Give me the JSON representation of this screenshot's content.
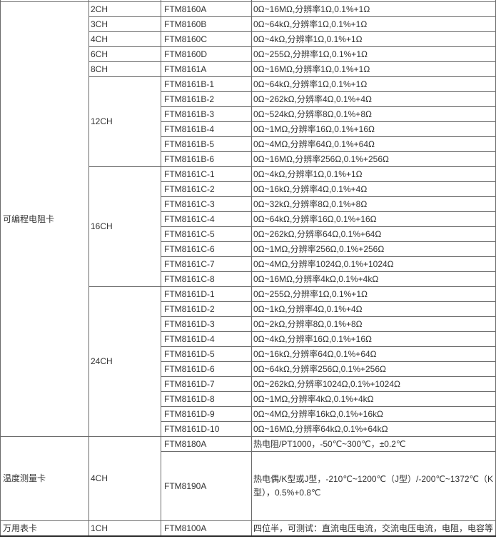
{
  "colors": {
    "border": "#6b6b6b",
    "text": "#333333",
    "background": "#ffffff",
    "outer_bottom_border": "#2e2e2e"
  },
  "table": {
    "sections": [
      {
        "category": "可编程电阻卡",
        "groups": [
          {
            "channel": "2CH",
            "rows": [
              {
                "model": "FTM8160A",
                "spec": "0Ω~16MΩ,分辨率1Ω,0.1%+1Ω"
              }
            ]
          },
          {
            "channel": "3CH",
            "rows": [
              {
                "model": "FTM8160B",
                "spec": "0Ω~64kΩ,分辨率1Ω,0.1%+1Ω"
              }
            ]
          },
          {
            "channel": "4CH",
            "rows": [
              {
                "model": "FTM8160C",
                "spec": "0Ω~4kΩ,分辨率1Ω,0.1%+1Ω"
              }
            ]
          },
          {
            "channel": "6CH",
            "rows": [
              {
                "model": "FTM8160D",
                "spec": "0Ω~255Ω,分辨率1Ω,0.1%+1Ω"
              }
            ]
          },
          {
            "channel": "8CH",
            "rows": [
              {
                "model": "FTM8161A",
                "spec": "0Ω~16MΩ,分辨率1Ω,0.1%+1Ω"
              }
            ]
          },
          {
            "channel": "12CH",
            "rows": [
              {
                "model": "FTM8161B-1",
                "spec": "0Ω~64kΩ,分辨率1Ω,0.1%+1Ω"
              },
              {
                "model": "FTM8161B-2",
                "spec": "0Ω~262kΩ,分辨率4Ω,0.1%+4Ω"
              },
              {
                "model": "FTM8161B-3",
                "spec": "0Ω~524kΩ,分辨率8Ω,0.1%+8Ω"
              },
              {
                "model": "FTM8161B-4",
                "spec": "0Ω~1MΩ,分辨率16Ω,0.1%+16Ω"
              },
              {
                "model": "FTM8161B-5",
                "spec": "0Ω~4MΩ,分辨率64Ω,0.1%+64Ω"
              },
              {
                "model": "FTM8161B-6",
                "spec": "0Ω~16MΩ,分辨率256Ω,0.1%+256Ω"
              }
            ]
          },
          {
            "channel": "16CH",
            "rows": [
              {
                "model": "FTM8161C-1",
                "spec": "0Ω~4kΩ,分辨率1Ω,0.1%+1Ω"
              },
              {
                "model": "FTM8161C-2",
                "spec": "0Ω~16kΩ,分辨率4Ω,0.1%+4Ω"
              },
              {
                "model": "FTM8161C-3",
                "spec": "0Ω~32kΩ,分辨率8Ω,0.1%+8Ω"
              },
              {
                "model": "FTM8161C-4",
                "spec": "0Ω~64kΩ,分辨率16Ω,0.1%+16Ω"
              },
              {
                "model": "FTM8161C-5",
                "spec": "0Ω~262kΩ,分辨率64Ω,0.1%+64Ω"
              },
              {
                "model": "FTM8161C-6",
                "spec": "0Ω~1MΩ,分辨率256Ω,0.1%+256Ω"
              },
              {
                "model": "FTM8161C-7",
                "spec": "0Ω~4MΩ,分辨率1024Ω,0.1%+1024Ω"
              },
              {
                "model": "FTM8161C-8",
                "spec": "0Ω~16MΩ,分辨率4kΩ,0.1%+4kΩ"
              }
            ]
          },
          {
            "channel": "24CH",
            "rows": [
              {
                "model": "FTM8161D-1",
                "spec": "0Ω~255Ω,分辨率1Ω,0.1%+1Ω"
              },
              {
                "model": "FTM8161D-2",
                "spec": "0Ω~1kΩ,分辨率4Ω,0.1%+4Ω"
              },
              {
                "model": "FTM8161D-3",
                "spec": "0Ω~2kΩ,分辨率8Ω,0.1%+8Ω"
              },
              {
                "model": "FTM8161D-4",
                "spec": "0Ω~4kΩ,分辨率16Ω,0.1%+16Ω"
              },
              {
                "model": "FTM8161D-5",
                "spec": "0Ω~16kΩ,分辨率64Ω,0.1%+64Ω"
              },
              {
                "model": "FTM8161D-6",
                "spec": "0Ω~64kΩ,分辨率256Ω,0.1%+256Ω"
              },
              {
                "model": "FTM8161D-7",
                "spec": "0Ω~262kΩ,分辨率1024Ω,0.1%+1024Ω"
              },
              {
                "model": "FTM8161D-8",
                "spec": "0Ω~1MΩ,分辨率4kΩ,0.1%+4kΩ"
              },
              {
                "model": "FTM8161D-9",
                "spec": "0Ω~4MΩ,分辨率16kΩ,0.1%+16kΩ"
              },
              {
                "model": "FTM8161D-10",
                "spec": "0Ω~16MΩ,分辨率64kΩ,0.1%+64kΩ"
              }
            ]
          }
        ]
      },
      {
        "category": "温度测量卡",
        "groups": [
          {
            "channel": "4CH",
            "rows": [
              {
                "model": "FTM8180A",
                "spec": "热电阻/PT1000，-50℃~300℃，±0.2℃"
              },
              {
                "model": "FTM8190A",
                "spec": "热电偶/K型或J型，-210℃~1200℃（J型）/-200℃~1372℃（K型），0.5%+0.8℃",
                "h": 97
              }
            ]
          }
        ]
      },
      {
        "category": "万用表卡",
        "groups": [
          {
            "channel": "1CH",
            "rows": [
              {
                "model": "FTM8100A",
                "spec": "四位半，可测试：直流电压电流，交流电压电流，电阻，电容等",
                "h": 21
              }
            ]
          }
        ]
      }
    ]
  }
}
